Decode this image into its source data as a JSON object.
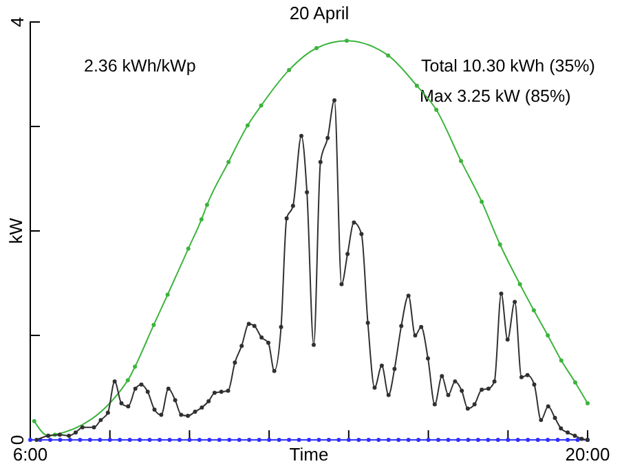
{
  "chart_data": {
    "type": "line",
    "title": "20 April",
    "xlabel": "Time",
    "ylabel": "kW",
    "annotations": [
      "2.36 kWh/kWp",
      "Total 10.30 kWh (35%)",
      "Max 3.25 kW (85%)"
    ],
    "xlim": [
      6,
      20
    ],
    "ylim": [
      0,
      4
    ],
    "xticks": [
      {
        "value": 6,
        "label": "6:00"
      },
      {
        "value": 8,
        "label": null
      },
      {
        "value": 10,
        "label": null
      },
      {
        "value": 12,
        "label": null
      },
      {
        "value": 14,
        "label": null
      },
      {
        "value": 16,
        "label": null
      },
      {
        "value": 18,
        "label": null
      },
      {
        "value": 20,
        "label": "20:00"
      }
    ],
    "yticks": [
      0,
      {
        "value": 1,
        "label": null
      },
      {
        "value": 2,
        "label": null
      },
      {
        "value": 3,
        "label": null
      },
      4
    ],
    "grid": false,
    "marker": "circle",
    "line_style": "solid",
    "series": [
      {
        "color": "#3cb43c",
        "x": [
          6.1,
          6.45,
          6.62,
          8.45,
          8.63,
          9.1,
          9.45,
          9.97,
          10.3,
          10.44,
          10.98,
          11.46,
          11.8,
          12.5,
          13.19,
          13.95,
          14.99,
          15.71,
          16.2,
          16.82,
          17.34,
          17.8,
          18.3,
          18.65,
          19.0,
          19.34,
          19.69,
          20.0
        ],
        "values": [
          0.18,
          0.04,
          0.05,
          0.57,
          0.7,
          1.1,
          1.39,
          1.83,
          2.11,
          2.25,
          2.66,
          3.01,
          3.2,
          3.54,
          3.75,
          3.82,
          3.68,
          3.39,
          3.16,
          2.67,
          2.28,
          1.87,
          1.49,
          1.24,
          1.0,
          0.76,
          0.55,
          0.35
        ]
      },
      {
        "color": "#3030ff",
        "x": [
          6,
          6.25,
          6.5,
          6.75,
          7,
          7.25,
          7.5,
          7.75,
          8,
          8.25,
          8.5,
          8.75,
          9,
          9.25,
          9.5,
          9.75,
          10,
          10.25,
          10.5,
          10.75,
          11,
          11.25,
          11.5,
          11.75,
          12,
          12.25,
          12.5,
          12.75,
          13,
          13.25,
          13.5,
          13.75,
          14,
          14.25,
          14.5,
          14.75,
          15,
          15.25,
          15.5,
          15.75,
          16,
          16.25,
          16.5,
          16.75,
          17,
          17.25,
          17.5,
          17.75,
          18,
          18.25,
          18.5,
          18.75,
          19,
          19.25,
          19.5,
          19.75,
          20
        ],
        "values": [
          0,
          0,
          0,
          0,
          0,
          0,
          0,
          0,
          0,
          0,
          0,
          0,
          0,
          0,
          0,
          0,
          0,
          0,
          0,
          0,
          0,
          0,
          0,
          0,
          0,
          0,
          0,
          0,
          0,
          0,
          0,
          0,
          0,
          0,
          0,
          0,
          0,
          0,
          0,
          0,
          0,
          0,
          0,
          0,
          0,
          0,
          0,
          0,
          0,
          0,
          0,
          0,
          0,
          0,
          0,
          0,
          0
        ]
      },
      {
        "color": "#303030",
        "x": [
          6.16,
          6.45,
          6.74,
          6.97,
          7.14,
          7.31,
          7.6,
          7.77,
          7.95,
          8.12,
          8.29,
          8.46,
          8.64,
          8.79,
          8.95,
          9.12,
          9.29,
          9.47,
          9.64,
          9.79,
          9.96,
          10.14,
          10.31,
          10.48,
          10.63,
          10.8,
          10.97,
          11.14,
          11.31,
          11.49,
          11.63,
          11.81,
          11.98,
          12.13,
          12.3,
          12.44,
          12.6,
          12.81,
          12.95,
          13.12,
          13.29,
          13.47,
          13.64,
          13.82,
          13.97,
          14.13,
          14.32,
          14.48,
          14.65,
          14.83,
          15.0,
          15.15,
          15.32,
          15.5,
          15.67,
          15.82,
          15.99,
          16.16,
          16.34,
          16.5,
          16.67,
          16.84,
          16.99,
          17.16,
          17.34,
          17.51,
          17.66,
          17.83,
          17.99,
          18.17,
          18.34,
          18.49,
          18.66,
          18.83,
          19.01,
          19.18,
          19.33,
          19.5,
          19.68,
          19.85,
          20.0
        ],
        "values": [
          0.0,
          0.04,
          0.05,
          0.04,
          0.07,
          0.12,
          0.12,
          0.19,
          0.26,
          0.56,
          0.35,
          0.32,
          0.49,
          0.53,
          0.46,
          0.29,
          0.24,
          0.49,
          0.38,
          0.24,
          0.23,
          0.27,
          0.31,
          0.37,
          0.45,
          0.46,
          0.47,
          0.74,
          0.9,
          1.11,
          1.09,
          0.98,
          0.93,
          0.66,
          1.08,
          2.12,
          2.24,
          2.91,
          2.37,
          0.91,
          2.66,
          2.89,
          3.25,
          1.49,
          1.78,
          2.08,
          1.97,
          1.12,
          0.5,
          0.71,
          0.43,
          0.68,
          1.09,
          1.38,
          1.0,
          1.08,
          0.78,
          0.34,
          0.61,
          0.43,
          0.56,
          0.47,
          0.3,
          0.34,
          0.48,
          0.49,
          0.56,
          1.4,
          0.96,
          1.32,
          0.6,
          0.62,
          0.53,
          0.19,
          0.32,
          0.21,
          0.11,
          0.07,
          0.04,
          0.01,
          0.0
        ]
      }
    ]
  }
}
